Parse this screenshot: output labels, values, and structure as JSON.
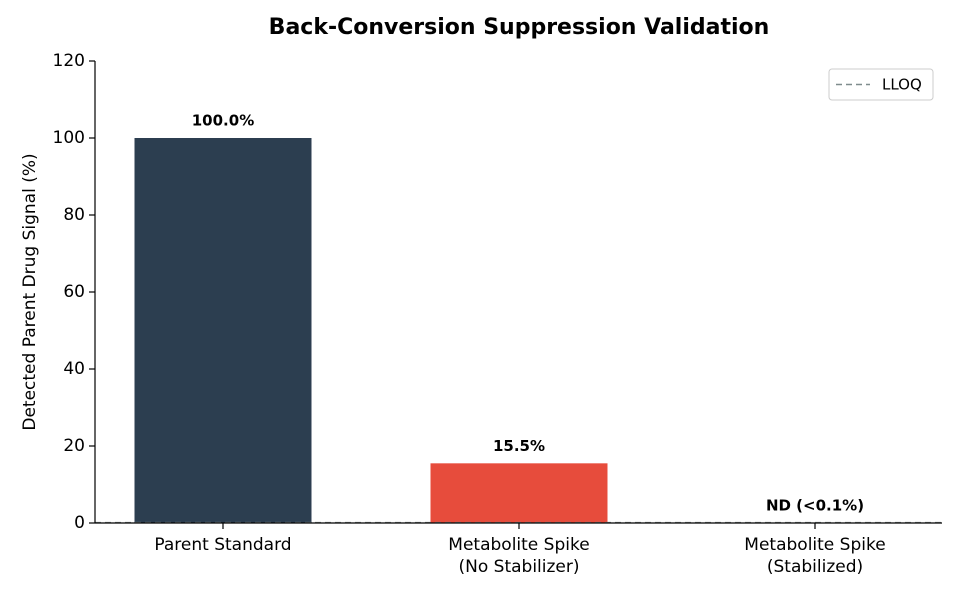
{
  "chart_data": {
    "type": "bar",
    "title": "Back-Conversion Suppression Validation",
    "y_label": "Detected Parent Drug Signal (%)",
    "categories": [
      "Parent Standard",
      "Metabolite Spike\n(No Stabilizer)",
      "Metabolite Spike\n(Stabilized)"
    ],
    "values": [
      100,
      15.5,
      0
    ],
    "value_labels": [
      "100.0%",
      "15.5%",
      "ND (<0.1%)"
    ],
    "colors": [
      "#2c3e50",
      "#e74c3c",
      "#27ae60"
    ],
    "ylim": [
      0,
      120
    ],
    "yticks": [
      0,
      20,
      40,
      60,
      80,
      100,
      120
    ],
    "reference_line": {
      "name": "LLOQ",
      "value": 0.1,
      "color": "#7f8c8d"
    },
    "legend": "upper right",
    "grid": false
  }
}
